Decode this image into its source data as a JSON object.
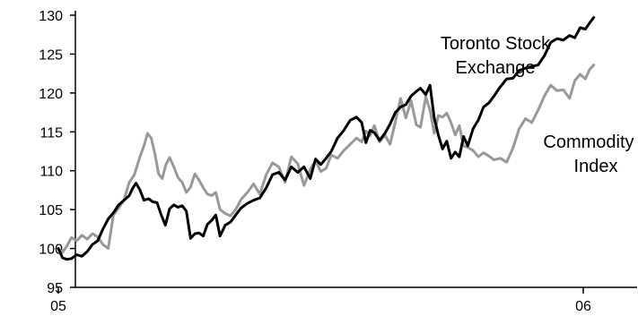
{
  "chart_data": {
    "type": "line",
    "title": "",
    "xlabel": "",
    "ylabel": "",
    "ylim": [
      95,
      130
    ],
    "yticks": [
      95,
      100,
      105,
      110,
      115,
      120,
      125,
      130
    ],
    "xticks": [
      {
        "label": "05",
        "value": 0
      },
      {
        "label": "06",
        "value": 1
      }
    ],
    "grid": false,
    "series": [
      {
        "name": "Toronto Stock Exchange",
        "label_lines": [
          "Toronto Stock",
          "Exchange"
        ],
        "color": "#000000",
        "points": [
          [
            0.0,
            100.0
          ],
          [
            0.008,
            98.8
          ],
          [
            0.016,
            98.6
          ],
          [
            0.025,
            98.7
          ],
          [
            0.035,
            99.2
          ],
          [
            0.045,
            99.0
          ],
          [
            0.055,
            99.6
          ],
          [
            0.065,
            100.5
          ],
          [
            0.075,
            101.0
          ],
          [
            0.085,
            102.5
          ],
          [
            0.095,
            103.8
          ],
          [
            0.105,
            104.6
          ],
          [
            0.115,
            105.6
          ],
          [
            0.125,
            106.2
          ],
          [
            0.135,
            106.8
          ],
          [
            0.142,
            107.8
          ],
          [
            0.148,
            108.4
          ],
          [
            0.155,
            107.6
          ],
          [
            0.163,
            106.2
          ],
          [
            0.172,
            106.4
          ],
          [
            0.18,
            106.0
          ],
          [
            0.188,
            105.9
          ],
          [
            0.196,
            104.3
          ],
          [
            0.204,
            103.0
          ],
          [
            0.212,
            105.1
          ],
          [
            0.22,
            105.6
          ],
          [
            0.228,
            105.3
          ],
          [
            0.236,
            105.5
          ],
          [
            0.244,
            104.8
          ],
          [
            0.252,
            101.3
          ],
          [
            0.26,
            101.9
          ],
          [
            0.268,
            102.0
          ],
          [
            0.276,
            101.6
          ],
          [
            0.284,
            103.1
          ],
          [
            0.292,
            103.6
          ],
          [
            0.3,
            104.3
          ],
          [
            0.308,
            101.6
          ],
          [
            0.318,
            103.0
          ],
          [
            0.328,
            103.4
          ],
          [
            0.338,
            104.3
          ],
          [
            0.348,
            105.2
          ],
          [
            0.36,
            105.8
          ],
          [
            0.372,
            106.2
          ],
          [
            0.384,
            106.5
          ],
          [
            0.396,
            107.8
          ],
          [
            0.408,
            109.5
          ],
          [
            0.42,
            109.8
          ],
          [
            0.432,
            108.8
          ],
          [
            0.444,
            110.5
          ],
          [
            0.456,
            109.8
          ],
          [
            0.468,
            110.5
          ],
          [
            0.48,
            109.0
          ],
          [
            0.49,
            111.5
          ],
          [
            0.5,
            110.8
          ],
          [
            0.51,
            111.6
          ],
          [
            0.52,
            112.5
          ],
          [
            0.532,
            114.2
          ],
          [
            0.544,
            115.2
          ],
          [
            0.556,
            116.5
          ],
          [
            0.568,
            116.9
          ],
          [
            0.578,
            116.2
          ],
          [
            0.586,
            113.6
          ],
          [
            0.594,
            115.2
          ],
          [
            0.602,
            114.9
          ],
          [
            0.612,
            113.9
          ],
          [
            0.622,
            114.8
          ],
          [
            0.632,
            116.0
          ],
          [
            0.642,
            117.5
          ],
          [
            0.652,
            118.2
          ],
          [
            0.662,
            118.5
          ],
          [
            0.672,
            119.6
          ],
          [
            0.682,
            120.2
          ],
          [
            0.69,
            120.6
          ],
          [
            0.7,
            119.8
          ],
          [
            0.708,
            121.0
          ],
          [
            0.716,
            116.8
          ],
          [
            0.724,
            114.6
          ],
          [
            0.732,
            112.8
          ],
          [
            0.74,
            113.8
          ],
          [
            0.748,
            111.6
          ],
          [
            0.756,
            112.4
          ],
          [
            0.764,
            111.8
          ],
          [
            0.772,
            114.4
          ],
          [
            0.78,
            113.2
          ],
          [
            0.79,
            115.4
          ],
          [
            0.8,
            116.5
          ],
          [
            0.81,
            118.2
          ],
          [
            0.82,
            118.7
          ],
          [
            0.83,
            119.6
          ],
          [
            0.842,
            120.8
          ],
          [
            0.854,
            121.8
          ],
          [
            0.866,
            121.9
          ],
          [
            0.878,
            122.9
          ],
          [
            0.89,
            123.2
          ],
          [
            0.902,
            123.4
          ],
          [
            0.914,
            123.6
          ],
          [
            0.926,
            124.8
          ],
          [
            0.938,
            126.5
          ],
          [
            0.95,
            127.0
          ],
          [
            0.962,
            126.8
          ],
          [
            0.974,
            127.4
          ],
          [
            0.984,
            127.1
          ],
          [
            0.994,
            128.4
          ],
          [
            1.004,
            128.2
          ],
          [
            1.012,
            129.0
          ],
          [
            1.02,
            129.7
          ]
        ]
      },
      {
        "name": "Commodity Index",
        "label_lines": [
          "Commodity",
          "Index"
        ],
        "color": "#999999",
        "points": [
          [
            0.0,
            100.0
          ],
          [
            0.008,
            99.5
          ],
          [
            0.016,
            100.3
          ],
          [
            0.025,
            101.4
          ],
          [
            0.035,
            101.0
          ],
          [
            0.045,
            101.7
          ],
          [
            0.055,
            101.2
          ],
          [
            0.065,
            101.9
          ],
          [
            0.075,
            101.5
          ],
          [
            0.085,
            100.5
          ],
          [
            0.095,
            100.0
          ],
          [
            0.105,
            104.3
          ],
          [
            0.115,
            105.2
          ],
          [
            0.125,
            106.2
          ],
          [
            0.135,
            108.5
          ],
          [
            0.145,
            109.5
          ],
          [
            0.155,
            111.7
          ],
          [
            0.163,
            113.2
          ],
          [
            0.17,
            114.8
          ],
          [
            0.177,
            114.2
          ],
          [
            0.184,
            112.2
          ],
          [
            0.191,
            109.6
          ],
          [
            0.198,
            109.0
          ],
          [
            0.205,
            110.8
          ],
          [
            0.212,
            111.7
          ],
          [
            0.22,
            110.5
          ],
          [
            0.228,
            109.1
          ],
          [
            0.236,
            108.5
          ],
          [
            0.244,
            107.2
          ],
          [
            0.252,
            107.9
          ],
          [
            0.26,
            109.6
          ],
          [
            0.268,
            108.8
          ],
          [
            0.276,
            107.8
          ],
          [
            0.284,
            107.0
          ],
          [
            0.292,
            106.8
          ],
          [
            0.3,
            107.2
          ],
          [
            0.308,
            105.0
          ],
          [
            0.318,
            104.5
          ],
          [
            0.328,
            104.2
          ],
          [
            0.338,
            105.0
          ],
          [
            0.348,
            106.3
          ],
          [
            0.36,
            107.2
          ],
          [
            0.372,
            108.3
          ],
          [
            0.384,
            107.0
          ],
          [
            0.396,
            109.5
          ],
          [
            0.408,
            111.0
          ],
          [
            0.42,
            110.5
          ],
          [
            0.432,
            108.5
          ],
          [
            0.444,
            111.8
          ],
          [
            0.456,
            110.9
          ],
          [
            0.468,
            108.1
          ],
          [
            0.48,
            110.2
          ],
          [
            0.49,
            111.3
          ],
          [
            0.5,
            109.9
          ],
          [
            0.51,
            110.3
          ],
          [
            0.52,
            112.0
          ],
          [
            0.532,
            111.6
          ],
          [
            0.544,
            112.6
          ],
          [
            0.556,
            113.4
          ],
          [
            0.568,
            114.2
          ],
          [
            0.578,
            113.7
          ],
          [
            0.586,
            115.1
          ],
          [
            0.594,
            114.5
          ],
          [
            0.602,
            115.8
          ],
          [
            0.612,
            113.7
          ],
          [
            0.622,
            114.6
          ],
          [
            0.632,
            113.4
          ],
          [
            0.642,
            116.3
          ],
          [
            0.652,
            119.3
          ],
          [
            0.662,
            116.8
          ],
          [
            0.672,
            119.0
          ],
          [
            0.682,
            115.9
          ],
          [
            0.69,
            115.6
          ],
          [
            0.7,
            119.5
          ],
          [
            0.708,
            117.8
          ],
          [
            0.716,
            114.8
          ],
          [
            0.724,
            117.1
          ],
          [
            0.732,
            116.9
          ],
          [
            0.74,
            117.4
          ],
          [
            0.748,
            116.2
          ],
          [
            0.756,
            114.6
          ],
          [
            0.764,
            115.8
          ],
          [
            0.772,
            113.2
          ],
          [
            0.78,
            113.0
          ],
          [
            0.79,
            112.6
          ],
          [
            0.8,
            111.8
          ],
          [
            0.81,
            112.3
          ],
          [
            0.82,
            111.9
          ],
          [
            0.83,
            111.4
          ],
          [
            0.842,
            111.6
          ],
          [
            0.854,
            111.1
          ],
          [
            0.866,
            112.9
          ],
          [
            0.878,
            115.4
          ],
          [
            0.89,
            116.7
          ],
          [
            0.902,
            116.2
          ],
          [
            0.914,
            117.8
          ],
          [
            0.926,
            119.6
          ],
          [
            0.938,
            121.0
          ],
          [
            0.95,
            120.3
          ],
          [
            0.962,
            120.4
          ],
          [
            0.974,
            119.3
          ],
          [
            0.984,
            121.6
          ],
          [
            0.994,
            122.4
          ],
          [
            1.004,
            121.8
          ],
          [
            1.012,
            123.0
          ],
          [
            1.02,
            123.6
          ]
        ]
      }
    ]
  }
}
